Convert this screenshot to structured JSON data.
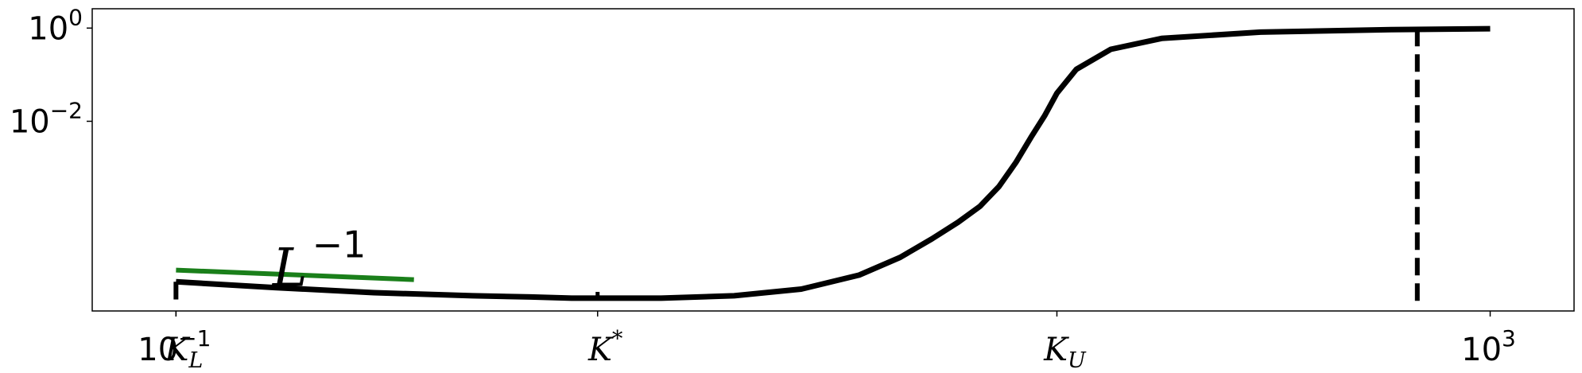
{
  "chart_data": {
    "type": "line",
    "title": "",
    "xlabel": "",
    "ylabel": "",
    "xscale": "log",
    "yscale": "log",
    "grid": false,
    "legend": "none",
    "xlim": [
      0.0556,
      1800
    ],
    "ylim": [
      8.5e-07,
      2.6
    ],
    "x_ticks": [
      {
        "value": 0.1,
        "base": "10",
        "exp": "−1"
      },
      {
        "value": 1000,
        "base": "10",
        "exp": "3"
      }
    ],
    "y_ticks": [
      {
        "value": 1,
        "base": "10",
        "exp": "0"
      },
      {
        "value": 0.01,
        "base": "10",
        "exp": "−2"
      }
    ],
    "k_ticks": [
      {
        "value": 0.1,
        "main": "K",
        "sub": "L",
        "sup": ""
      },
      {
        "value": 1.92,
        "main": "K",
        "sub": "",
        "sup": "*"
      },
      {
        "value": 48,
        "main": "K",
        "sub": "U",
        "sup": ""
      }
    ],
    "series": [
      {
        "color": "#000000",
        "style": "solid",
        "x": [
          0.1,
          0.2,
          0.4,
          0.8,
          1.2,
          1.6,
          1.92,
          3,
          5,
          8,
          12,
          16,
          20,
          24,
          28,
          32,
          36,
          40,
          44,
          48,
          55,
          70,
          100,
          200,
          500,
          1000
        ],
        "y": [
          3.6e-06,
          2.7e-06,
          2.1e-06,
          1.8e-06,
          1.7e-06,
          1.6e-06,
          1.6e-06,
          1.6e-06,
          1.8e-06,
          2.5e-06,
          5e-06,
          1.2e-05,
          3e-05,
          6.8e-05,
          0.00015,
          0.0004,
          0.0013,
          0.0045,
          0.013,
          0.04,
          0.13,
          0.35,
          0.6,
          0.82,
          0.93,
          0.97
        ]
      },
      {
        "color": "#1a7f1a",
        "style": "solid",
        "x": [
          0.1,
          0.53
        ],
        "y": [
          6.4e-06,
          4e-06
        ]
      }
    ],
    "markers": [
      {
        "type": "vline",
        "color": "#000000",
        "style": "dashed",
        "x": 600,
        "y_from": 1.4e-06,
        "y_to": 1
      },
      {
        "type": "vline",
        "color": "#000000",
        "style": "solid",
        "x": 0.1,
        "y_from": 1.5e-06,
        "y_to": 3.6e-06
      }
    ],
    "annotations": [
      {
        "main": "L",
        "sup": "−1",
        "x": 0.2,
        "y": 7.5e-06
      }
    ]
  }
}
